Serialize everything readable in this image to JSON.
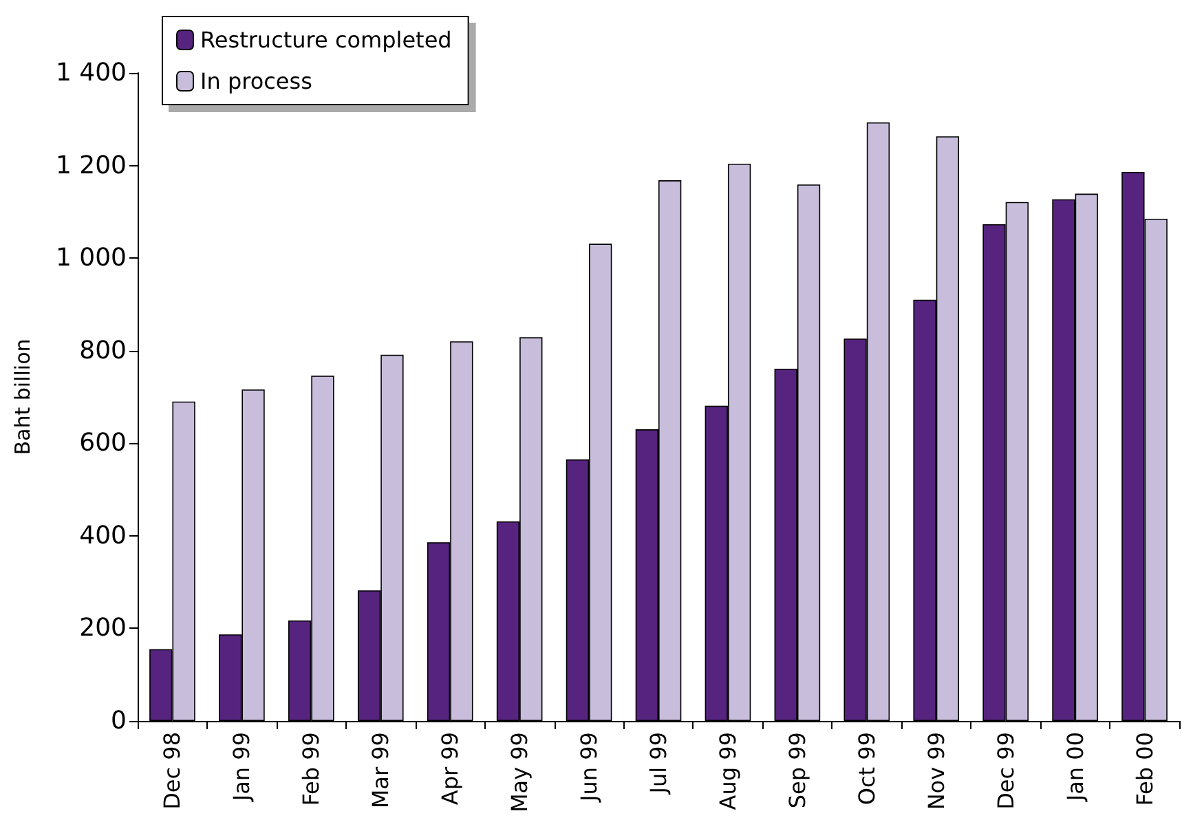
{
  "chart_data": {
    "type": "bar",
    "ylabel": "Baht billion",
    "categories": [
      "Dec 98",
      "Jan 99",
      "Feb 99",
      "Mar 99",
      "Apr 99",
      "May 99",
      "Jun 99",
      "Jul 99",
      "Aug 99",
      "Sep 99",
      "Oct 99",
      "Nov 99",
      "Dec 99",
      "Jan 00",
      "Feb 00"
    ],
    "series": [
      {
        "name": "Restructure completed",
        "color": "#56237f",
        "values": [
          155,
          187,
          217,
          282,
          386,
          431,
          565,
          630,
          681,
          761,
          826,
          910,
          1073,
          1127,
          1186
        ]
      },
      {
        "name": "In process",
        "color": "#c8bedc",
        "values": [
          690,
          716,
          746,
          791,
          820,
          829,
          1031,
          1168,
          1204,
          1159,
          1293,
          1263,
          1121,
          1139,
          1085
        ]
      }
    ],
    "ylim": [
      0,
      1400
    ],
    "yticks": [
      0,
      200,
      400,
      600,
      800,
      {
        "value": 1000,
        "label": "1 000"
      },
      {
        "value": 1200,
        "label": "1 200"
      },
      {
        "value": 1400,
        "label": "1 400"
      }
    ],
    "grid": false,
    "legend": "top left"
  }
}
